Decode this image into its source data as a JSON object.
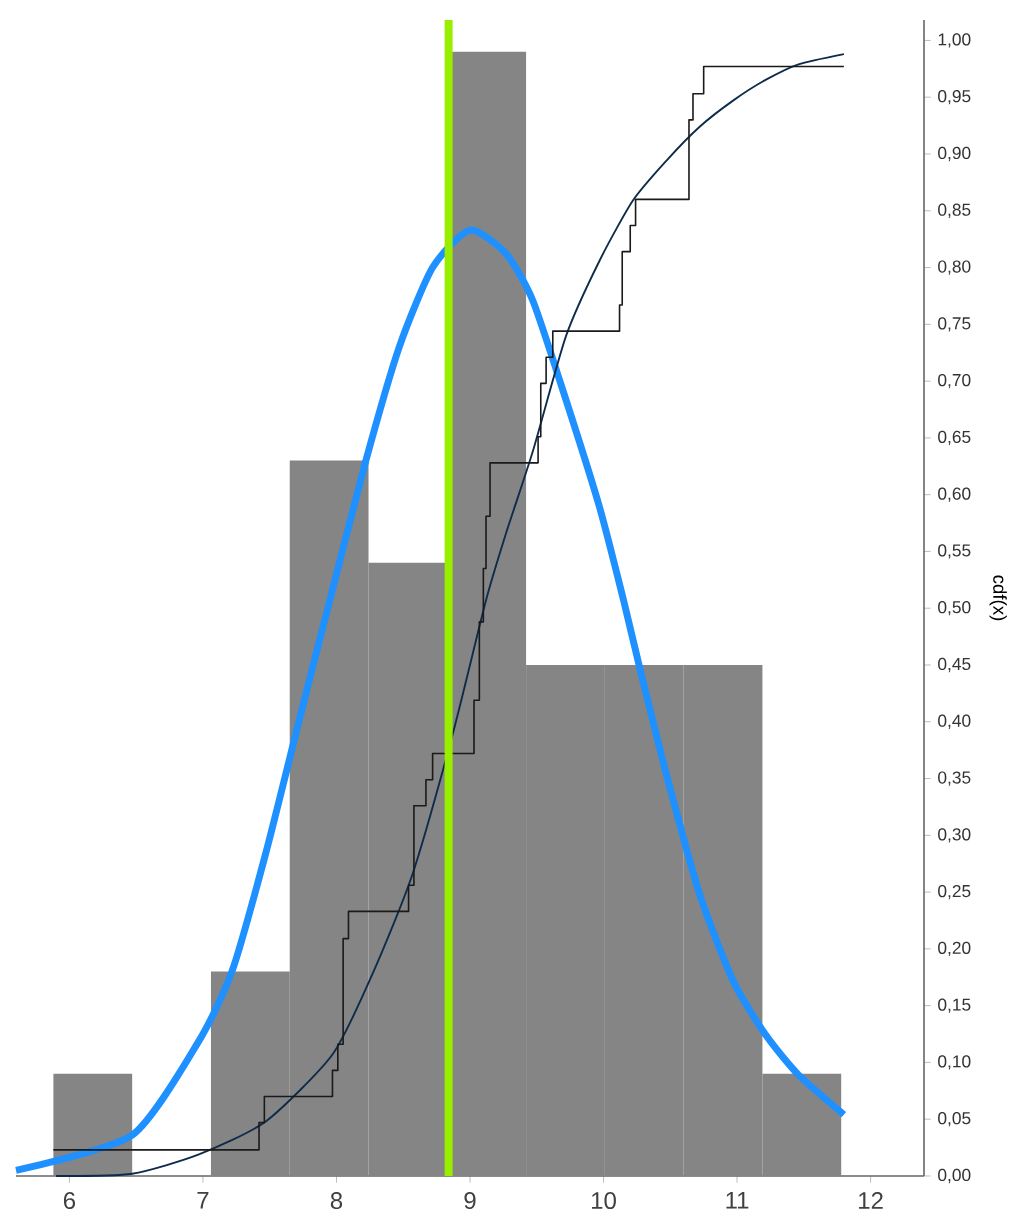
{
  "chart_data": {
    "type": "histogram",
    "ylabel": "cdf(x)",
    "color": "#858585",
    "bins": [
      5.88,
      6.47,
      7.06,
      7.65,
      8.24,
      8.83,
      9.42,
      10.01,
      10.6,
      11.19,
      11.78
    ],
    "values": [
      0.09,
      0,
      0.18,
      0.63,
      0.54,
      0.99,
      0.45,
      0.45,
      0.45,
      0.09
    ],
    "series": [
      {
        "type": "line",
        "color": "#1e90ff",
        "x": [
          5.6,
          6.47,
          6.97,
          7.22,
          7.47,
          7.72,
          7.95,
          8.22,
          8.47,
          8.72,
          9.0,
          9.27,
          9.47,
          9.72,
          9.97,
          10.15,
          10.27,
          10.47,
          10.72,
          10.97,
          11.21,
          11.46,
          11.8
        ],
        "values": [
          0.005,
          0.036,
          0.119,
          0.181,
          0.284,
          0.401,
          0.507,
          0.63,
          0.73,
          0.8,
          0.833,
          0.812,
          0.771,
          0.683,
          0.589,
          0.507,
          0.448,
          0.354,
          0.248,
          0.172,
          0.125,
          0.089,
          0.054
        ]
      },
      {
        "type": "line",
        "color": "#0d2b4a",
        "x": [
          5.9,
          6.47,
          6.97,
          7.47,
          7.97,
          8.27,
          8.57,
          8.87,
          9.12,
          9.27,
          9.47,
          9.72,
          9.97,
          10.22,
          10.47,
          10.72,
          10.97,
          11.21,
          11.46,
          11.8
        ],
        "values": [
          0,
          0.002,
          0.019,
          0.048,
          0.107,
          0.178,
          0.266,
          0.389,
          0.507,
          0.566,
          0.638,
          0.74,
          0.806,
          0.859,
          0.894,
          0.924,
          0.947,
          0.965,
          0.979,
          0.988
        ]
      },
      {
        "type": "step",
        "color": "#1a1a1a",
        "x": [
          5.88,
          7.42,
          7.46,
          7.97,
          8.01,
          8.05,
          8.09,
          8.54,
          8.58,
          8.67,
          8.72,
          9.03,
          9.07,
          9.1,
          9.12,
          9.15,
          9.51,
          9.53,
          9.57,
          9.62,
          10.12,
          10.14,
          10.2,
          10.24,
          10.64,
          10.67,
          10.75,
          11.8
        ],
        "values": [
          0.023,
          0.047,
          0.07,
          0.093,
          0.116,
          0.209,
          0.233,
          0.256,
          0.326,
          0.349,
          0.372,
          0.419,
          0.488,
          0.535,
          0.581,
          0.628,
          0.651,
          0.698,
          0.721,
          0.744,
          0.767,
          0.814,
          0.837,
          0.86,
          0.93,
          0.953,
          0.977,
          0.977
        ]
      }
    ],
    "ref_lines": [
      {
        "axis": "x",
        "value": 8.84,
        "color": "#99ee00"
      }
    ],
    "xlim": [
      5.6,
      12.4
    ],
    "ylim": [
      0,
      1.018
    ],
    "xticks": [
      6,
      7,
      8,
      9,
      10,
      11,
      12
    ],
    "yticks": [
      {
        "value": 0,
        "label": "0,00"
      },
      {
        "value": 0.05,
        "label": "0,05"
      },
      {
        "value": 0.1,
        "label": "0,10"
      },
      {
        "value": 0.15,
        "label": "0,15"
      },
      {
        "value": 0.2,
        "label": "0,20"
      },
      {
        "value": 0.25,
        "label": "0,25"
      },
      {
        "value": 0.3,
        "label": "0,30"
      },
      {
        "value": 0.35,
        "label": "0,35"
      },
      {
        "value": 0.4,
        "label": "0,40"
      },
      {
        "value": 0.45,
        "label": "0,45"
      },
      {
        "value": 0.5,
        "label": "0,50"
      },
      {
        "value": 0.55,
        "label": "0,55"
      },
      {
        "value": 0.6,
        "label": "0,60"
      },
      {
        "value": 0.65,
        "label": "0,65"
      },
      {
        "value": 0.7,
        "label": "0,70"
      },
      {
        "value": 0.75,
        "label": "0,75"
      },
      {
        "value": 0.8,
        "label": "0,80"
      },
      {
        "value": 0.85,
        "label": "0,85"
      },
      {
        "value": 0.9,
        "label": "0,90"
      },
      {
        "value": 0.95,
        "label": "0,95"
      },
      {
        "value": 1,
        "label": "1,00"
      }
    ]
  }
}
